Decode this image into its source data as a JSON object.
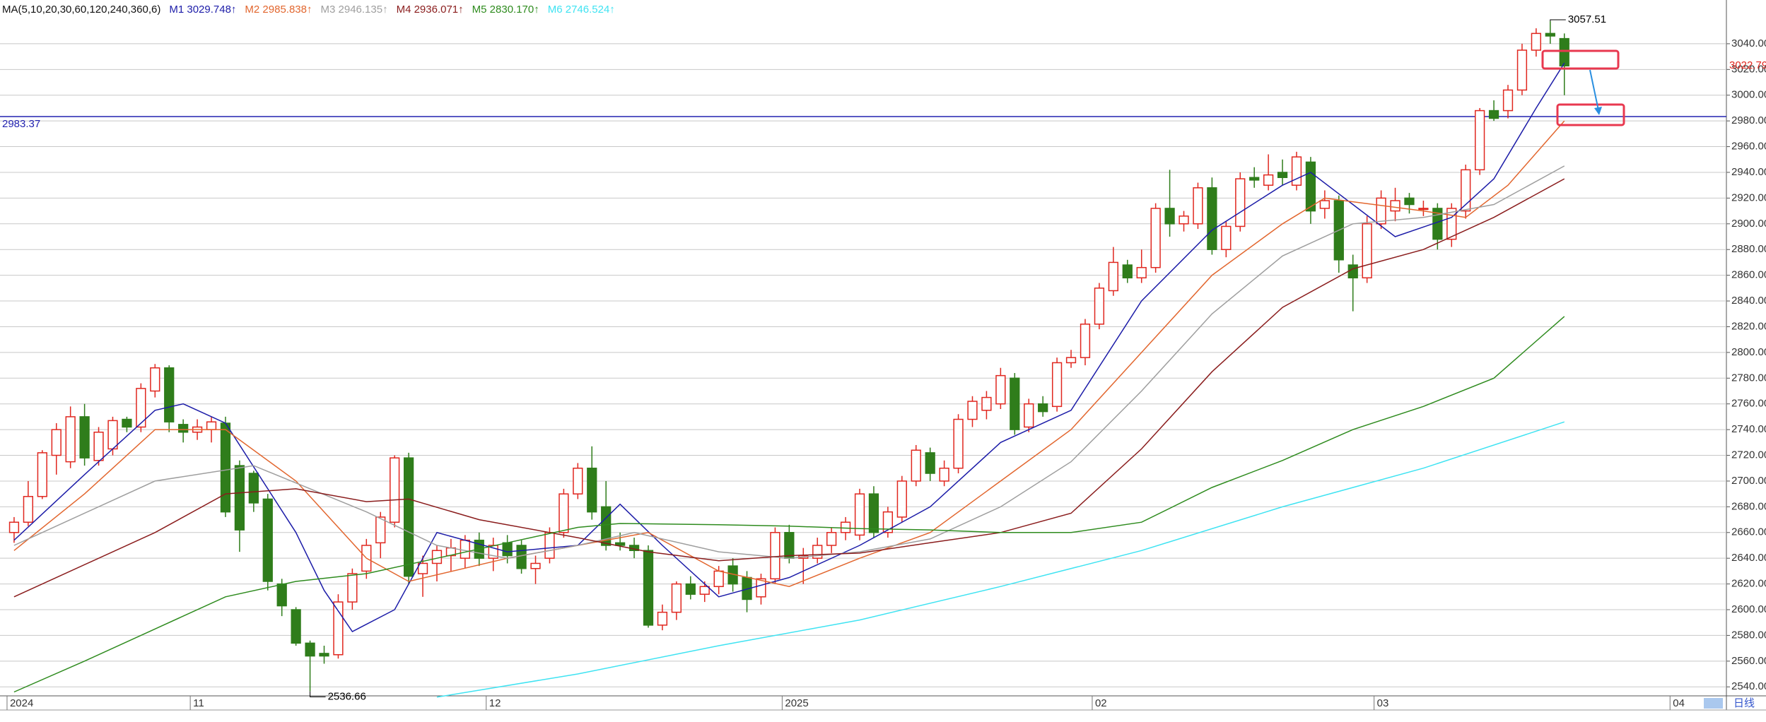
{
  "chart_data": {
    "type": "candlestick",
    "ma_label": "MA(5,10,20,30,60,120,240,360,6)",
    "period": "日线",
    "open": [
      2660,
      2668,
      2688,
      2720,
      2715,
      2750,
      2716,
      2725,
      2748,
      2742,
      2770,
      2788,
      2744,
      2738,
      2740,
      2745,
      2712,
      2706,
      2686,
      2620,
      2600,
      2574,
      2566,
      2565,
      2606,
      2630,
      2652,
      2668,
      2718,
      2628,
      2636,
      2642,
      2640,
      2654,
      2640,
      2652,
      2650,
      2632,
      2640,
      2660,
      2690,
      2710,
      2680,
      2652,
      2650,
      2646,
      2588,
      2598,
      2620,
      2612,
      2618,
      2634,
      2625,
      2610,
      2624,
      2660,
      2640,
      2640,
      2650,
      2660,
      2658,
      2690,
      2660,
      2672,
      2700,
      2722,
      2700,
      2710,
      2748,
      2755,
      2760,
      2780,
      2742,
      2760,
      2758,
      2792,
      2796,
      2822,
      2848,
      2868,
      2858,
      2866,
      2912,
      2900,
      2900,
      2928,
      2880,
      2898,
      2936,
      2930,
      2940,
      2930,
      2948,
      2912,
      2918,
      2868,
      2858,
      2900,
      2910,
      2920,
      2912,
      2912,
      2888,
      2910,
      2942,
      2988,
      2988,
      3004,
      3035,
      3048,
      3044
    ],
    "high": [
      2672,
      2700,
      2724,
      2745,
      2758,
      2760,
      2742,
      2750,
      2750,
      2776,
      2791,
      2790,
      2748,
      2748,
      2750,
      2750,
      2716,
      2708,
      2690,
      2624,
      2602,
      2576,
      2572,
      2612,
      2632,
      2655,
      2676,
      2720,
      2722,
      2642,
      2650,
      2655,
      2658,
      2660,
      2656,
      2658,
      2654,
      2642,
      2664,
      2694,
      2714,
      2727,
      2700,
      2660,
      2656,
      2650,
      2604,
      2622,
      2626,
      2622,
      2634,
      2640,
      2630,
      2628,
      2664,
      2666,
      2648,
      2656,
      2664,
      2672,
      2694,
      2696,
      2680,
      2704,
      2728,
      2726,
      2716,
      2752,
      2766,
      2770,
      2788,
      2784,
      2764,
      2766,
      2796,
      2802,
      2826,
      2854,
      2882,
      2872,
      2880,
      2916,
      2942,
      2910,
      2932,
      2936,
      2902,
      2940,
      2944,
      2954,
      2950,
      2956,
      2952,
      2926,
      2922,
      2876,
      2906,
      2926,
      2928,
      2924,
      2918,
      2916,
      2916,
      2946,
      2990,
      2996,
      3008,
      3040,
      3052,
      3057.51,
      3048
    ],
    "low": [
      2652,
      2665,
      2686,
      2705,
      2710,
      2712,
      2712,
      2720,
      2738,
      2738,
      2765,
      2738,
      2730,
      2732,
      2730,
      2672,
      2645,
      2676,
      2615,
      2595,
      2572,
      2536.66,
      2558,
      2562,
      2600,
      2624,
      2640,
      2664,
      2620,
      2610,
      2622,
      2630,
      2632,
      2634,
      2630,
      2636,
      2628,
      2620,
      2636,
      2656,
      2686,
      2670,
      2646,
      2646,
      2640,
      2586,
      2584,
      2592,
      2608,
      2606,
      2612,
      2614,
      2598,
      2604,
      2620,
      2636,
      2620,
      2636,
      2644,
      2654,
      2654,
      2656,
      2656,
      2668,
      2696,
      2700,
      2696,
      2706,
      2742,
      2748,
      2756,
      2736,
      2738,
      2750,
      2754,
      2788,
      2790,
      2818,
      2844,
      2854,
      2854,
      2862,
      2890,
      2894,
      2896,
      2876,
      2874,
      2894,
      2928,
      2926,
      2930,
      2926,
      2900,
      2904,
      2862,
      2832,
      2854,
      2896,
      2902,
      2908,
      2906,
      2880,
      2882,
      2904,
      2938,
      2980,
      2982,
      3000,
      3030,
      3040,
      3000
    ],
    "close": [
      2668,
      2688,
      2722,
      2740,
      2750,
      2718,
      2738,
      2747,
      2742,
      2772,
      2788,
      2746,
      2738,
      2742,
      2746,
      2676,
      2662,
      2683,
      2622,
      2603,
      2574,
      2564,
      2564,
      2606,
      2628,
      2650,
      2672,
      2718,
      2626,
      2636,
      2646,
      2648,
      2654,
      2640,
      2650,
      2642,
      2632,
      2636,
      2660,
      2690,
      2710,
      2676,
      2650,
      2650,
      2646,
      2588,
      2598,
      2620,
      2612,
      2618,
      2630,
      2620,
      2608,
      2624,
      2660,
      2640,
      2642,
      2650,
      2660,
      2668,
      2690,
      2660,
      2676,
      2700,
      2724,
      2706,
      2710,
      2748,
      2762,
      2765,
      2782,
      2740,
      2760,
      2754,
      2792,
      2796,
      2822,
      2850,
      2870,
      2858,
      2866,
      2912,
      2900,
      2906,
      2928,
      2880,
      2898,
      2935,
      2934,
      2938,
      2936,
      2952,
      2910,
      2918,
      2872,
      2858,
      2900,
      2920,
      2918,
      2915,
      2912,
      2888,
      2912,
      2942,
      2988,
      2982,
      3004,
      3035,
      3048,
      3046,
      3022.79
    ],
    "up_color": "#e0271f",
    "down_color": "#2f7d1b",
    "series": [
      {
        "name": "M1 3029.748↑",
        "color": "#1c1ca8",
        "x": [
          0,
          5,
          10,
          12,
          15,
          20,
          22,
          24,
          27,
          30,
          35,
          40,
          43,
          46,
          50,
          55,
          60,
          65,
          70,
          75,
          80,
          85,
          90,
          92,
          95,
          98,
          102,
          105,
          108,
          110
        ],
        "values": [
          2654,
          2705,
          2755,
          2760,
          2745,
          2660,
          2615,
          2583,
          2600,
          2660,
          2645,
          2650,
          2682,
          2650,
          2610,
          2625,
          2650,
          2680,
          2730,
          2755,
          2840,
          2895,
          2930,
          2940,
          2915,
          2890,
          2905,
          2935,
          2990,
          3025
        ]
      },
      {
        "name": "M2 2985.838↑",
        "color": "#e2662e",
        "x": [
          0,
          5,
          10,
          15,
          20,
          25,
          28,
          35,
          40,
          45,
          50,
          55,
          60,
          65,
          70,
          75,
          80,
          85,
          90,
          93,
          100,
          103,
          106,
          110
        ],
        "values": [
          2646,
          2690,
          2740,
          2740,
          2700,
          2640,
          2622,
          2640,
          2650,
          2660,
          2630,
          2618,
          2640,
          2660,
          2700,
          2740,
          2800,
          2860,
          2900,
          2920,
          2910,
          2905,
          2930,
          2980
        ]
      },
      {
        "name": "M3 2946.135↑",
        "color": "#9e9e9e",
        "x": [
          0,
          10,
          17,
          25,
          30,
          35,
          40,
          44,
          50,
          55,
          60,
          65,
          70,
          75,
          80,
          85,
          90,
          95,
          100,
          105,
          110
        ],
        "values": [
          2650,
          2700,
          2712,
          2676,
          2650,
          2640,
          2650,
          2660,
          2645,
          2640,
          2645,
          2655,
          2680,
          2715,
          2770,
          2830,
          2875,
          2900,
          2905,
          2915,
          2945
        ]
      },
      {
        "name": "M4 2936.071↑",
        "color": "#8a1c1c",
        "x": [
          0,
          10,
          15,
          20,
          25,
          28,
          33,
          40,
          45,
          50,
          55,
          60,
          65,
          70,
          75,
          80,
          85,
          90,
          95,
          100,
          105,
          110
        ],
        "values": [
          2610,
          2660,
          2690,
          2694,
          2684,
          2686,
          2670,
          2656,
          2645,
          2638,
          2642,
          2644,
          2652,
          2660,
          2675,
          2725,
          2785,
          2835,
          2865,
          2880,
          2905,
          2935
        ]
      },
      {
        "name": "M5 2830.170↑",
        "color": "#2e8b1e",
        "x": [
          0,
          5,
          10,
          15,
          20,
          25,
          30,
          35,
          40,
          43,
          50,
          55,
          60,
          65,
          70,
          75,
          80,
          85,
          90,
          95,
          100,
          105,
          110
        ],
        "values": [
          2536,
          2560,
          2585,
          2610,
          2622,
          2628,
          2640,
          2652,
          2664,
          2667,
          2666,
          2665,
          2663,
          2662,
          2660,
          2660,
          2668,
          2695,
          2716,
          2740,
          2758,
          2780,
          2828
        ]
      },
      {
        "name": "M6 2746.524↑",
        "color": "#3fe3f2",
        "x": [
          30,
          40,
          50,
          60,
          70,
          80,
          90,
          100,
          110
        ],
        "values": [
          2532,
          2550,
          2572,
          2592,
          2618,
          2646,
          2680,
          2710,
          2746
        ]
      }
    ],
    "hline": 2983.37,
    "hline_color": "#2222b0",
    "xlim": [
      -1,
      121.5
    ],
    "xticks": [
      {
        "value": 0,
        "label": "2024"
      },
      {
        "value": 13,
        "label": "11"
      },
      {
        "value": 34,
        "label": "12"
      },
      {
        "value": 55,
        "label": "2025"
      },
      {
        "value": 77,
        "label": "02"
      },
      {
        "value": 97,
        "label": "03"
      },
      {
        "value": 118,
        "label": "04"
      }
    ],
    "ylim": [
      2533,
      3074
    ],
    "yticks": [
      {
        "value": 2540,
        "label": "2540.00"
      },
      {
        "value": 2560,
        "label": "2560.00"
      },
      {
        "value": 2580,
        "label": "2580.00"
      },
      {
        "value": 2600,
        "label": "2600.00"
      },
      {
        "value": 2620,
        "label": "2620.00"
      },
      {
        "value": 2640,
        "label": "2640.00"
      },
      {
        "value": 2660,
        "label": "2660.00"
      },
      {
        "value": 2680,
        "label": "2680.00"
      },
      {
        "value": 2700,
        "label": "2700.00"
      },
      {
        "value": 2720,
        "label": "2720.00"
      },
      {
        "value": 2740,
        "label": "2740.00"
      },
      {
        "value": 2760,
        "label": "2760.00"
      },
      {
        "value": 2780,
        "label": "2780.00"
      },
      {
        "value": 2800,
        "label": "2800.00"
      },
      {
        "value": 2820,
        "label": "2820.00"
      },
      {
        "value": 2840,
        "label": "2840.00"
      },
      {
        "value": 2860,
        "label": "2860.00"
      },
      {
        "value": 2880,
        "label": "2880.00"
      },
      {
        "value": 2900,
        "label": "2900.00"
      },
      {
        "value": 2920,
        "label": "2920.00"
      },
      {
        "value": 2940,
        "label": "2940.00"
      },
      {
        "value": 2960,
        "label": "2960.00"
      },
      {
        "value": 2980,
        "label": "2980.00"
      },
      {
        "value": 3000,
        "label": "3000.00"
      },
      {
        "value": 3020,
        "label": "3020.00"
      },
      {
        "value": 3040,
        "label": "3040.00"
      }
    ],
    "grid": true
  }
}
